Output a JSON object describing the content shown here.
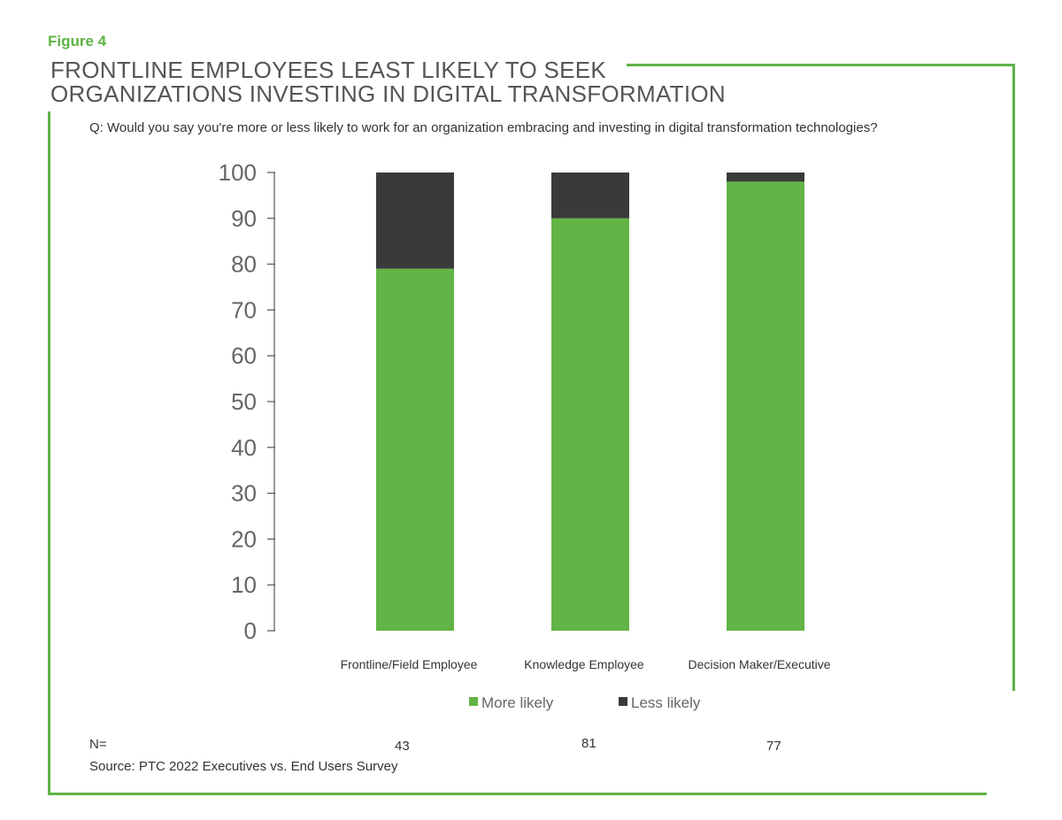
{
  "figure_label": "Figure 4",
  "title_lines": [
    "FRONTLINE EMPLOYEES LEAST LIKELY TO SEEK",
    "ORGANIZATIONS INVESTING IN DIGITAL TRANSFORMATION"
  ],
  "question": "Q: Would you say you're more or less likely to work for an organization embracing and investing in digital transformation technologies?",
  "colors": {
    "accent": "#5fb246",
    "more_likely": "#62b446",
    "less_likely": "#3a3a3a",
    "axis": "#555555"
  },
  "chart_data": {
    "type": "bar",
    "stacked": true,
    "categories": [
      "Frontline/Field Employee",
      "Knowledge Employee",
      "Decision Maker/Executive"
    ],
    "series": [
      {
        "name": "More likely",
        "color": "#62b446",
        "values": [
          79,
          90,
          98
        ]
      },
      {
        "name": "Less likely",
        "color": "#3a3a3a",
        "values": [
          21,
          10,
          2
        ]
      }
    ],
    "ylim": [
      0,
      100
    ],
    "yticks": [
      0,
      10,
      20,
      30,
      40,
      50,
      60,
      70,
      80,
      90,
      100
    ],
    "title": "",
    "xlabel": "",
    "ylabel": "",
    "legend_position": "bottom",
    "grid": false
  },
  "n_row": {
    "label": "N=",
    "values": [
      "43",
      "81",
      "77"
    ]
  },
  "source": "Source: PTC 2022 Executives vs. End Users Survey"
}
